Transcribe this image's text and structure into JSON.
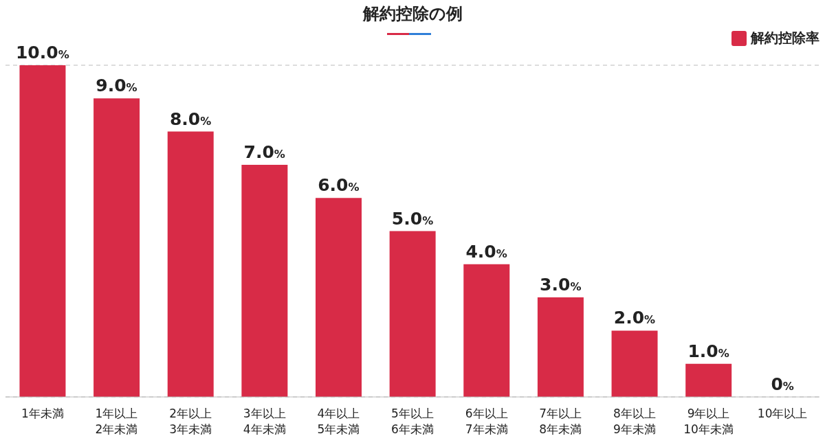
{
  "chart_data": {
    "type": "bar",
    "title": "解約控除の例",
    "categories": [
      "1年未満",
      "1年以上\n2年未満",
      "2年以上\n3年未満",
      "3年以上\n4年未満",
      "4年以上\n5年未満",
      "5年以上\n6年未満",
      "6年以上\n7年未満",
      "7年以上\n8年未満",
      "8年以上\n9年未満",
      "9年以上\n10年未満",
      "10年以上"
    ],
    "series": [
      {
        "name": "解約控除率",
        "color": "#d82b47",
        "values": [
          10,
          9,
          8,
          7,
          6,
          5,
          4,
          3,
          2,
          1,
          0
        ],
        "value_labels": [
          "10.0%",
          "9.0%",
          "8.0%",
          "7.0%",
          "6.0%",
          "5.0%",
          "4.0%",
          "3.0%",
          "2.0%",
          "1.0%",
          "0%"
        ]
      }
    ],
    "ylim": [
      0,
      10
    ],
    "tick_labels": "x",
    "grid": "y",
    "legend": "top right"
  }
}
